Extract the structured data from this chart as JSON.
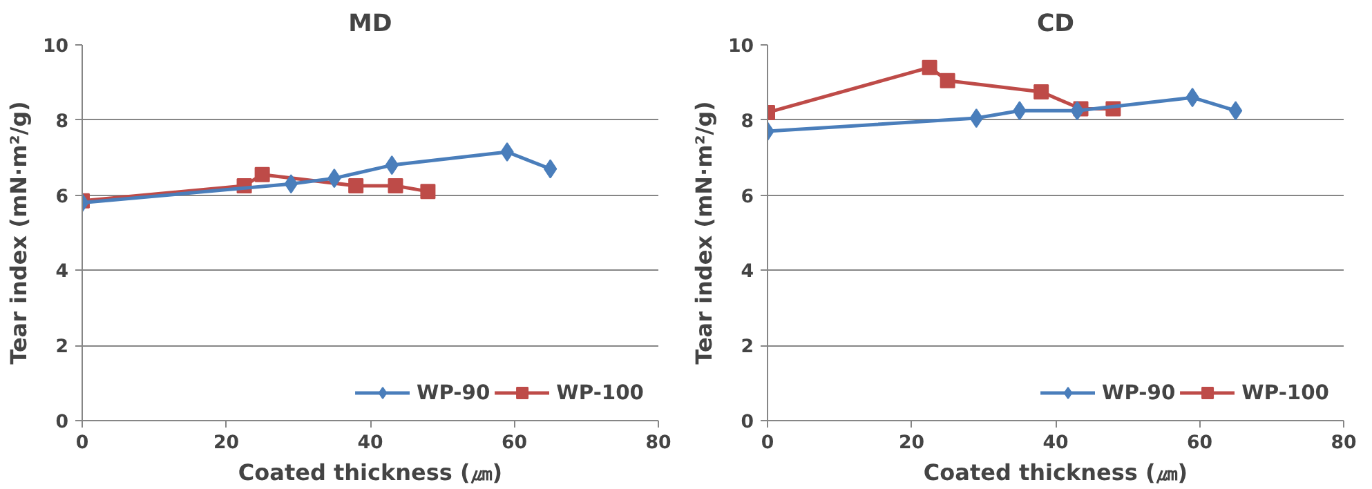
{
  "chart_data": [
    {
      "type": "line",
      "title": "MD",
      "xlabel": "Coated thickness (㎛)",
      "ylabel": "Tear index (mN·m²/g)",
      "xlim": [
        0,
        80
      ],
      "xticks": [
        0,
        20,
        40,
        60,
        80
      ],
      "ylim": [
        0,
        10
      ],
      "yticks": [
        0,
        2,
        4,
        6,
        8,
        10
      ],
      "grid": "y",
      "legend": "bottom right",
      "series": [
        {
          "name": "WP-90",
          "color": "#4a7ebb",
          "marker": "diamond",
          "x": [
            0,
            29,
            35,
            43,
            59,
            65
          ],
          "values": [
            5.8,
            6.3,
            6.45,
            6.8,
            7.15,
            6.7
          ]
        },
        {
          "name": "WP-100",
          "color": "#be4b48",
          "marker": "square",
          "x": [
            0,
            22.5,
            25,
            38,
            43.5,
            48
          ],
          "values": [
            5.85,
            6.25,
            6.55,
            6.25,
            6.25,
            6.1
          ]
        }
      ]
    },
    {
      "type": "line",
      "title": "CD",
      "xlabel": "Coated thickness (㎛)",
      "ylabel": "Tear index (mN·m²/g)",
      "xlim": [
        0,
        80
      ],
      "xticks": [
        0,
        20,
        40,
        60,
        80
      ],
      "ylim": [
        0,
        10
      ],
      "yticks": [
        0,
        2,
        4,
        6,
        8,
        10
      ],
      "grid": "y",
      "legend": "bottom right",
      "series": [
        {
          "name": "WP-90",
          "color": "#4a7ebb",
          "marker": "diamond",
          "x": [
            0,
            29,
            35,
            43,
            59,
            65
          ],
          "values": [
            7.7,
            8.05,
            8.25,
            8.25,
            8.6,
            8.25
          ]
        },
        {
          "name": "WP-100",
          "color": "#be4b48",
          "marker": "square",
          "x": [
            0,
            22.5,
            25,
            38,
            43.5,
            48
          ],
          "values": [
            8.2,
            9.4,
            9.05,
            8.75,
            8.3,
            8.3
          ]
        }
      ]
    }
  ]
}
